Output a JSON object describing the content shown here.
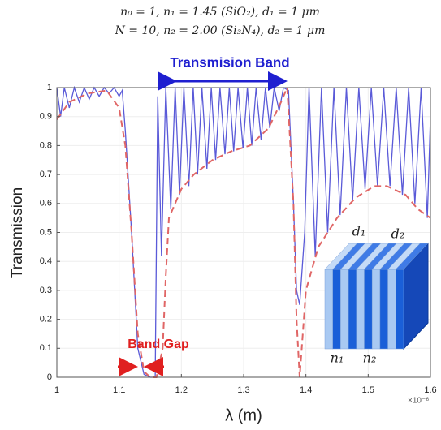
{
  "chart_data": {
    "type": "line",
    "title": "n₀ = 1, n₁ = 1.45 (SiO₂),  d₁ = 1 μm",
    "subtitle": "N = 10, n₂ = 2.00 (Si₃N₄), d₂ = 1 μm",
    "x_label": "λ (m)",
    "y_label": "Transmission",
    "x_exponent": "×10⁻⁶",
    "annotations": {
      "band": "Transmision Band",
      "gap": "Band Gap",
      "d1": "d₁",
      "d2": "d₂",
      "n1": "n₁",
      "n2": "n₂"
    },
    "xlim": [
      1,
      1.6
    ],
    "ylim": [
      0,
      1
    ],
    "xticks": [
      1,
      1.1,
      1.2,
      1.3,
      1.4,
      1.5,
      1.6
    ],
    "yticks": [
      0,
      0.1,
      0.2,
      0.3,
      0.4,
      0.5,
      0.6,
      0.7,
      0.8,
      0.9,
      1
    ],
    "series": [
      {
        "color": "#5a5ad8",
        "style": "solid",
        "x": [
          1.0,
          1.006,
          1.012,
          1.02,
          1.028,
          1.036,
          1.044,
          1.052,
          1.06,
          1.068,
          1.076,
          1.084,
          1.092,
          1.1,
          1.105,
          1.11,
          1.12,
          1.13,
          1.14,
          1.15,
          1.158,
          1.162,
          1.168,
          1.175,
          1.183,
          1.19,
          1.197,
          1.204,
          1.212,
          1.219,
          1.226,
          1.233,
          1.241,
          1.248,
          1.255,
          1.262,
          1.27,
          1.277,
          1.284,
          1.291,
          1.299,
          1.306,
          1.313,
          1.32,
          1.328,
          1.335,
          1.342,
          1.349,
          1.357,
          1.364,
          1.372,
          1.38,
          1.385,
          1.39,
          1.398,
          1.405,
          1.415,
          1.425,
          1.435,
          1.445,
          1.455,
          1.465,
          1.475,
          1.485,
          1.495,
          1.505,
          1.515,
          1.525,
          1.535,
          1.545,
          1.555,
          1.565,
          1.575,
          1.585,
          1.595,
          1.6
        ],
        "values": [
          1,
          0.9,
          1,
          0.93,
          1,
          0.95,
          1,
          0.96,
          1,
          0.97,
          1,
          0.98,
          1,
          0.97,
          0.99,
          0.85,
          0.5,
          0.1,
          0.01,
          0,
          0,
          0.97,
          0.42,
          1,
          0.58,
          1,
          0.63,
          1,
          0.66,
          1,
          0.7,
          1,
          0.72,
          1,
          0.75,
          1,
          0.77,
          1,
          0.78,
          1,
          0.79,
          1,
          0.8,
          1,
          0.82,
          1,
          0.86,
          1,
          0.92,
          1,
          0.99,
          0.6,
          0.3,
          0.25,
          0.5,
          1,
          0.42,
          1,
          0.5,
          1,
          0.56,
          1,
          0.61,
          1,
          0.65,
          1,
          0.66,
          1,
          0.66,
          1,
          0.63,
          1,
          0.6,
          1,
          0.55,
          0.9
        ]
      },
      {
        "color": "#e06666",
        "style": "dashed",
        "x": [
          1.0,
          1.02,
          1.05,
          1.08,
          1.1,
          1.11,
          1.12,
          1.13,
          1.14,
          1.15,
          1.16,
          1.17,
          1.175,
          1.18,
          1.2,
          1.22,
          1.25,
          1.28,
          1.31,
          1.34,
          1.36,
          1.37,
          1.38,
          1.385,
          1.39,
          1.4,
          1.42,
          1.45,
          1.48,
          1.51,
          1.53,
          1.56,
          1.58,
          1.6
        ],
        "values": [
          0.89,
          0.95,
          0.98,
          0.99,
          0.93,
          0.8,
          0.5,
          0.15,
          0.02,
          0,
          0,
          0.1,
          0.35,
          0.55,
          0.65,
          0.7,
          0.75,
          0.78,
          0.8,
          0.86,
          0.95,
          1,
          0.6,
          0.2,
          0,
          0.3,
          0.45,
          0.55,
          0.62,
          0.66,
          0.66,
          0.63,
          0.58,
          0.55
        ]
      }
    ]
  }
}
